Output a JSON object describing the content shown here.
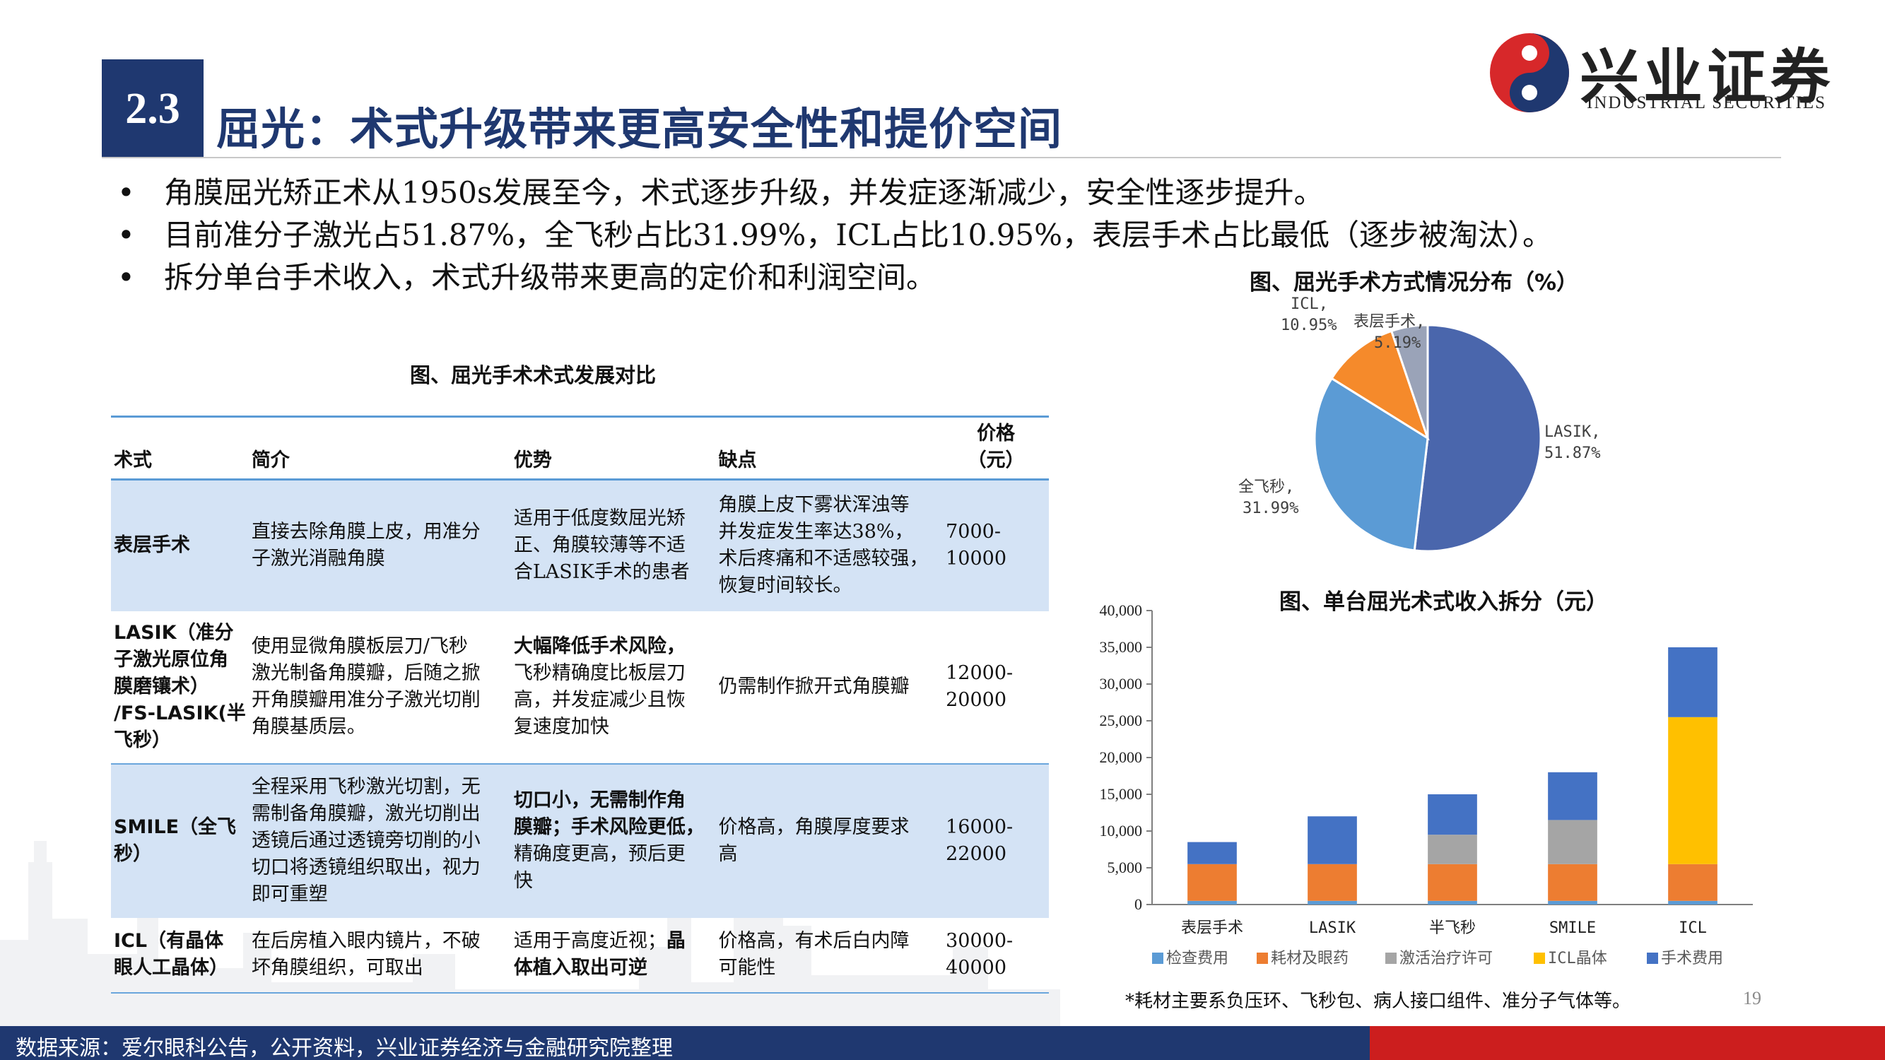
{
  "header": {
    "section_number": "2.3",
    "title": "屈光：术式升级带来更高安全性和提价空间",
    "logo_cn": "兴业证券",
    "logo_en": "INDUSTRIAL SECURITIES"
  },
  "bullets": [
    "角膜屈光矫正术从1950s发展至今，术式逐步升级，并发症逐渐减少，安全性逐步提升。",
    "目前准分子激光占51.87%，全飞秒占比31.99%，ICL占比10.95%，表层手术占比最低（逐步被淘汰）。",
    "拆分单台手术收入，术式升级带来更高的定价和利润空间。"
  ],
  "bullet_symbol": "•",
  "table": {
    "title": "图、屈光手术术式发展对比",
    "headers": {
      "method": "术式",
      "intro": "简介",
      "advantage": "优势",
      "disadvantage": "缺点",
      "price_l1": "价格",
      "price_l2": "（元）"
    },
    "rows": [
      {
        "name": [
          "表层手术"
        ],
        "intro": [
          "直接去除角膜上皮，用准分",
          "子激光消融角膜"
        ],
        "adv_bold": [],
        "adv": [
          "适用于低度数屈光矫",
          "正、角膜较薄等不适",
          "合LASIK手术的患者"
        ],
        "dis": [
          "角膜上皮下雾状浑浊等",
          "并发症发生率达38%，",
          "术后疼痛和不适感较强，",
          "恢复时间较长。"
        ],
        "price": [
          "7000-",
          "10000"
        ]
      },
      {
        "name": [
          "LASIK（准分",
          "子激光原位角",
          "膜磨镶术）",
          "/FS-LASIK(半",
          "飞秒）"
        ],
        "intro": [
          "使用显微角膜板层刀/飞秒",
          "激光制备角膜瓣，后随之掀",
          "开角膜瓣用准分子激光切削",
          "角膜基质层。"
        ],
        "adv_bold": [
          "大幅降低手术风险，"
        ],
        "adv": [
          "飞秒精确度比板层刀",
          "高，并发症减少且恢",
          "复速度加快"
        ],
        "dis": [
          "仍需制作掀开式角膜瓣"
        ],
        "price": [
          "12000-",
          "20000"
        ]
      },
      {
        "name": [
          "SMILE（全飞",
          "秒）"
        ],
        "intro": [
          "全程采用飞秒激光切割，无",
          "需制备角膜瓣，激光切削出",
          "透镜后通过透镜旁切削的小",
          "切口将透镜组织取出，视力",
          "即可重塑"
        ],
        "adv_bold": [
          "切口小，无需制作角",
          "膜瓣；手术风险更低，"
        ],
        "adv": [
          "精确度更高，预后更",
          "快"
        ],
        "dis": [
          "价格高，角膜厚度要求",
          "高"
        ],
        "price": [
          "16000-",
          "22000"
        ]
      },
      {
        "name": [
          "ICL（有晶体",
          "眼人工晶体）"
        ],
        "intro": [
          "在后房植入眼内镜片，不破",
          "坏角膜组织，可取出"
        ],
        "adv_mixed_plain": "适用于高度近视；",
        "adv_mixed_bold": "晶",
        "adv_bold_tail": "体植入取出可逆",
        "dis": [
          "价格高，有术后白内障",
          "可能性"
        ],
        "price": [
          "30000-",
          "40000"
        ]
      }
    ]
  },
  "pie": {
    "title": "图、屈光手术方式情况分布（%）",
    "labels": [
      {
        "name": "LASIK,",
        "value": "51.87%"
      },
      {
        "name": "全飞秒,",
        "value": "31.99%"
      },
      {
        "name": "ICL,",
        "value": "10.95%"
      },
      {
        "name": "表层手术,",
        "value": "5.19%"
      }
    ]
  },
  "chart_data": [
    {
      "type": "pie",
      "title": "图、屈光手术方式情况分布（%）",
      "categories": [
        "LASIK",
        "全飞秒",
        "ICL",
        "表层手术"
      ],
      "values": [
        51.87,
        31.99,
        10.95,
        5.19
      ],
      "colors": [
        "#4a66ac",
        "#5b9bd5",
        "#f58a2b",
        "#9aa3b8"
      ]
    },
    {
      "type": "bar",
      "stacked": true,
      "title": "图、单台屈光术式收入拆分（元）",
      "categories": [
        "表层手术",
        "LASIK",
        "半飞秒",
        "SMILE",
        "ICL"
      ],
      "series": [
        {
          "name": "检查费用",
          "color": "#5b9bd5",
          "values": [
            500,
            500,
            500,
            500,
            500
          ]
        },
        {
          "name": "耗材及眼药",
          "color": "#ed7d31",
          "values": [
            5000,
            5000,
            5000,
            5000,
            5000
          ]
        },
        {
          "name": "激活治疗许可",
          "color": "#a5a5a5",
          "values": [
            0,
            0,
            4000,
            6000,
            0
          ]
        },
        {
          "name": "ICL晶体",
          "color": "#ffc000",
          "values": [
            0,
            0,
            0,
            0,
            20000
          ]
        },
        {
          "name": "手术费用",
          "color": "#4472c4",
          "values": [
            3000,
            6500,
            5500,
            6500,
            9500
          ]
        }
      ],
      "ylim": [
        0,
        40000
      ],
      "yticks": [
        "0",
        "5,000",
        "10,000",
        "15,000",
        "20,000",
        "25,000",
        "30,000",
        "35,000",
        "40,000"
      ],
      "legend": "bottom"
    }
  ],
  "bar": {
    "title": "图、单台屈光术式收入拆分（元）"
  },
  "note": "*耗材主要系负压环、飞秒包、病人接口组件、准分子气体等。",
  "page_number": "19",
  "footer": "数据来源：爱尔眼科公告，公开资料，兴业证券经济与金融研究院整理",
  "colors": {
    "navy": "#1f3870",
    "red": "#cc1e1e",
    "table_rule": "#5b9bd5",
    "table_shade": "#d4e3f5"
  }
}
